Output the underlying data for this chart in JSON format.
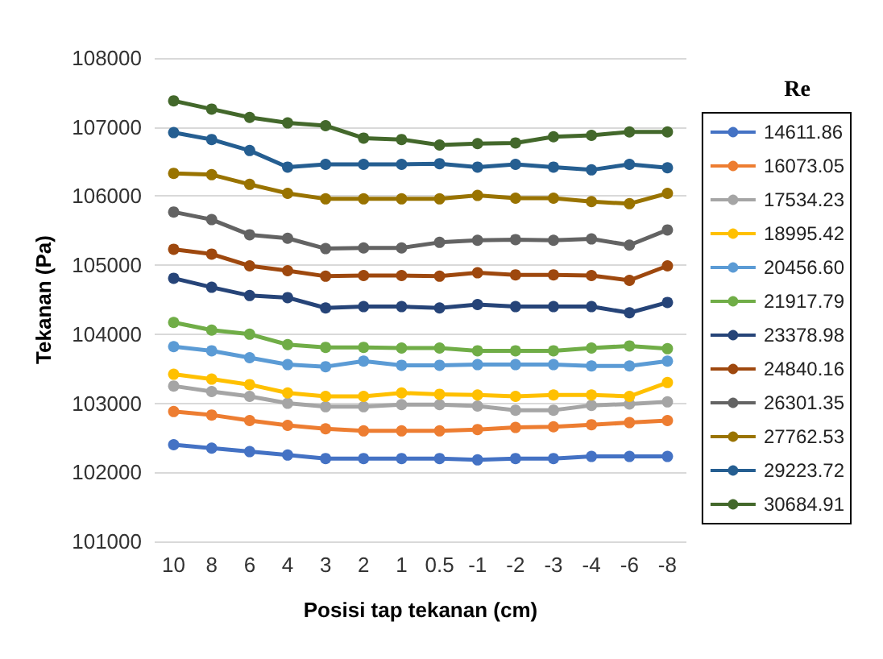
{
  "chart_data": {
    "type": "line",
    "xlabel": "Posisi tap tekanan (cm)",
    "ylabel": "Tekanan (Pa)",
    "legend_title": "Re",
    "categories": [
      "10",
      "8",
      "6",
      "4",
      "3",
      "2",
      "1",
      "0.5",
      "-1",
      "-2",
      "-3",
      "-4",
      "-6",
      "-8"
    ],
    "series": [
      {
        "name": "14611.86",
        "color": "#4472c4",
        "values": [
          102400,
          102350,
          102300,
          102250,
          102200,
          102200,
          102200,
          102200,
          102180,
          102200,
          102200,
          102230,
          102230,
          102230
        ]
      },
      {
        "name": "16073.05",
        "color": "#ed7d31",
        "values": [
          102880,
          102830,
          102750,
          102680,
          102630,
          102600,
          102600,
          102600,
          102620,
          102650,
          102660,
          102690,
          102720,
          102750
        ]
      },
      {
        "name": "17534.23",
        "color": "#a5a5a5",
        "values": [
          103250,
          103170,
          103100,
          103000,
          102950,
          102950,
          102980,
          102980,
          102960,
          102900,
          102900,
          102970,
          102990,
          103020
        ]
      },
      {
        "name": "18995.42",
        "color": "#ffc000",
        "values": [
          103420,
          103350,
          103270,
          103150,
          103100,
          103100,
          103150,
          103130,
          103120,
          103100,
          103120,
          103120,
          103100,
          103300
        ]
      },
      {
        "name": "20456.60",
        "color": "#5b9bd5",
        "values": [
          103820,
          103760,
          103660,
          103560,
          103530,
          103610,
          103550,
          103550,
          103560,
          103560,
          103560,
          103540,
          103540,
          103610
        ]
      },
      {
        "name": "21917.79",
        "color": "#70ad47",
        "values": [
          104170,
          104060,
          104000,
          103850,
          103810,
          103810,
          103800,
          103800,
          103760,
          103760,
          103760,
          103800,
          103830,
          103790
        ]
      },
      {
        "name": "23378.98",
        "color": "#264478",
        "values": [
          104810,
          104680,
          104560,
          104530,
          104380,
          104400,
          104400,
          104380,
          104430,
          104400,
          104400,
          104400,
          104310,
          104460
        ]
      },
      {
        "name": "24840.16",
        "color": "#9e480e",
        "values": [
          105230,
          105160,
          104990,
          104920,
          104840,
          104850,
          104850,
          104840,
          104890,
          104860,
          104860,
          104850,
          104780,
          104990
        ]
      },
      {
        "name": "26301.35",
        "color": "#636363",
        "values": [
          105770,
          105660,
          105440,
          105390,
          105240,
          105250,
          105250,
          105330,
          105360,
          105370,
          105360,
          105380,
          105290,
          105510
        ]
      },
      {
        "name": "27762.53",
        "color": "#997300",
        "values": [
          106330,
          106310,
          106170,
          106040,
          105960,
          105960,
          105960,
          105960,
          106010,
          105970,
          105970,
          105920,
          105890,
          106040
        ]
      },
      {
        "name": "29223.72",
        "color": "#255e91",
        "values": [
          106920,
          106820,
          106660,
          106420,
          106460,
          106460,
          106460,
          106470,
          106420,
          106460,
          106420,
          106380,
          106460,
          106410
        ]
      },
      {
        "name": "30684.91",
        "color": "#43682b",
        "values": [
          107380,
          107260,
          107140,
          107060,
          107020,
          106840,
          106820,
          106740,
          106760,
          106770,
          106860,
          106880,
          106930,
          106930
        ]
      }
    ],
    "ylim": [
      101000,
      108000
    ],
    "yticks": [
      101000,
      102000,
      103000,
      104000,
      105000,
      106000,
      107000,
      108000
    ],
    "grid": "y",
    "legend": "right",
    "marker": "circle",
    "line_style": "solid"
  }
}
